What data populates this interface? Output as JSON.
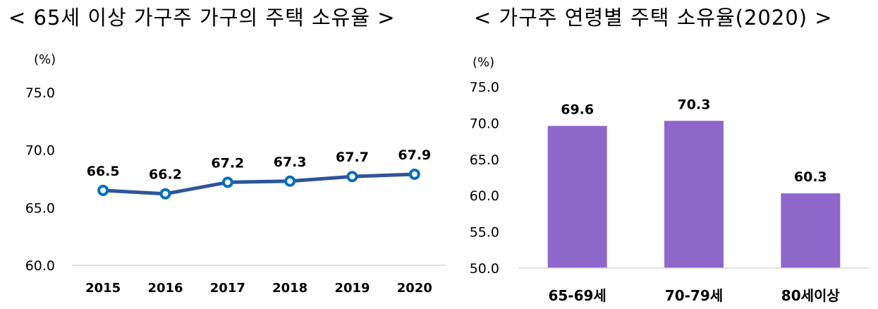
{
  "chart_data": [
    {
      "type": "line",
      "title": "< 65세 이상 가구주 가구의 주택 소유율 >",
      "ylabel": "(%)",
      "categories": [
        "2015",
        "2016",
        "2017",
        "2018",
        "2019",
        "2020"
      ],
      "series": [
        {
          "values": [
            66.5,
            66.2,
            67.2,
            67.3,
            67.7,
            67.9
          ]
        }
      ],
      "ylim": [
        60.0,
        75.0
      ],
      "yticks": [
        "60.0",
        "65.0",
        "70.0",
        "75.0"
      ],
      "data_labels": [
        "66.5",
        "66.2",
        "67.2",
        "67.3",
        "67.7",
        "67.9"
      ],
      "grid": false,
      "colors": {
        "line": "#2E5597",
        "marker_stroke": "#0070C0",
        "marker_fill": "#ffffff"
      }
    },
    {
      "type": "bar",
      "title": "< 가구주 연령별 주택 소유율(2020) >",
      "ylabel": "(%)",
      "categories": [
        "65-69세",
        "70-79세",
        "80세이상"
      ],
      "values": [
        69.6,
        70.3,
        60.3
      ],
      "ylim": [
        50.0,
        75.0
      ],
      "yticks": [
        "50.0",
        "55.0",
        "60.0",
        "65.0",
        "70.0",
        "75.0"
      ],
      "data_labels": [
        "69.6",
        "70.3",
        "60.3"
      ],
      "grid": false,
      "colors": {
        "bar": "#8E67CB"
      }
    }
  ]
}
